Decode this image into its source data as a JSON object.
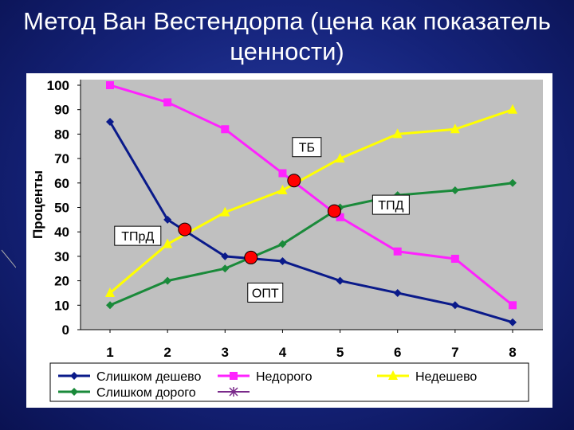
{
  "slide": {
    "title_line1": "Метод Ван Вестендорпа (цена как показатель",
    "title_line2": "ценности)"
  },
  "chart_data": {
    "type": "line",
    "x": [
      1,
      2,
      3,
      4,
      5,
      6,
      7,
      8
    ],
    "ylabel": "Проценты",
    "xlabel": "",
    "ylim": [
      0,
      100
    ],
    "yticks": [
      0,
      10,
      20,
      30,
      40,
      50,
      60,
      70,
      80,
      90,
      100
    ],
    "grid": false,
    "legend": "bottom",
    "series": [
      {
        "name": "Слишком дешево",
        "color": "#0a1a8a",
        "marker": "diamond",
        "values": [
          85,
          45,
          30,
          28,
          20,
          15,
          10,
          3
        ]
      },
      {
        "name": "Недорого",
        "color": "#ff22ff",
        "marker": "square",
        "values": [
          100,
          93,
          82,
          64,
          46,
          32,
          29,
          10
        ]
      },
      {
        "name": "Недешево",
        "color": "#ffff00",
        "marker": "triangle",
        "values": [
          15,
          35,
          48,
          57,
          70,
          80,
          82,
          90
        ]
      },
      {
        "name": "Слишком дорого",
        "color": "#1a8a3a",
        "marker": "diamond",
        "values": [
          10,
          20,
          25,
          35,
          50,
          55,
          57,
          60
        ]
      }
    ],
    "extra_legend_marker_color": "#7a2a8a",
    "intersections": [
      {
        "label": "ТПрД",
        "x": 2.3,
        "y": 41
      },
      {
        "label": "ОПТ",
        "x": 3.45,
        "y": 29.5
      },
      {
        "label": "ТБ",
        "x": 4.2,
        "y": 61
      },
      {
        "label": "ТПД",
        "x": 4.9,
        "y": 48.5
      }
    ],
    "intersection_color": "#ff0000"
  }
}
